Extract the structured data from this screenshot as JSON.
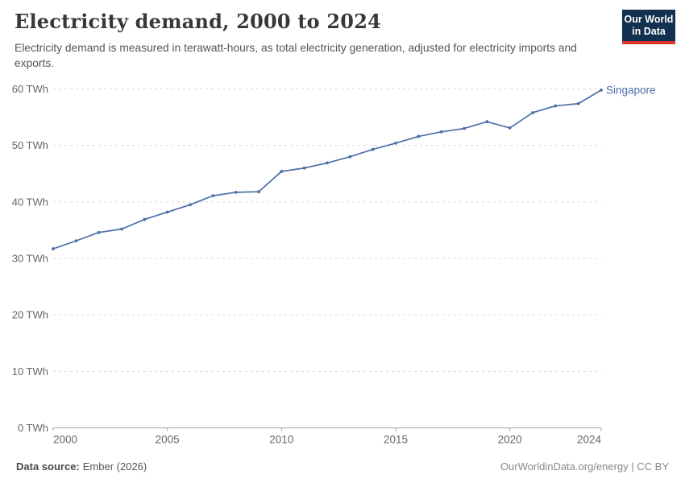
{
  "header": {
    "title": "Electricity demand, 2000 to 2024",
    "subtitle": "Electricity demand is measured in terawatt-hours, as total electricity generation, adjusted for electricity imports and exports.",
    "logo": {
      "line1": "Our World",
      "line2": "in Data",
      "bg_color": "#12304f",
      "accent_color": "#dc362b"
    }
  },
  "chart_data": {
    "type": "line",
    "title": "Electricity demand, 2000 to 2024",
    "unit": "TWh",
    "xlabel": "",
    "ylabel": "",
    "xlim": [
      2000,
      2024
    ],
    "ylim": [
      0,
      60
    ],
    "grid": "horizontal-dashed",
    "legend_position": "end-of-line",
    "xticks": [
      2000,
      2005,
      2010,
      2015,
      2020,
      2024
    ],
    "yticks": [
      {
        "value": 0,
        "label": "0 TWh"
      },
      {
        "value": 10,
        "label": "10 TWh"
      },
      {
        "value": 20,
        "label": "20 TWh"
      },
      {
        "value": 30,
        "label": "30 TWh"
      },
      {
        "value": 40,
        "label": "40 TWh"
      },
      {
        "value": 50,
        "label": "50 TWh"
      },
      {
        "value": 60,
        "label": "60 TWh"
      }
    ],
    "series": [
      {
        "name": "Singapore",
        "color": "#4c6ea9",
        "x": [
          2000,
          2001,
          2002,
          2003,
          2004,
          2005,
          2006,
          2007,
          2008,
          2009,
          2010,
          2011,
          2012,
          2013,
          2014,
          2015,
          2016,
          2017,
          2018,
          2019,
          2020,
          2021,
          2022,
          2023,
          2024
        ],
        "values": [
          31.7,
          33.1,
          34.6,
          35.2,
          36.9,
          38.2,
          39.5,
          41.1,
          41.7,
          41.8,
          45.4,
          46.0,
          46.9,
          48.0,
          49.3,
          50.4,
          51.6,
          52.4,
          53.0,
          54.2,
          53.1,
          55.8,
          57.0,
          57.4,
          59.8
        ]
      }
    ],
    "colors": {
      "gridline": "#dadada",
      "axis": "#a5a5a5",
      "tick_text": "#666666"
    }
  },
  "footer": {
    "source_label": "Data source:",
    "source_value": "Ember (2026)",
    "credit": "OurWorldinData.org/energy | CC BY"
  }
}
